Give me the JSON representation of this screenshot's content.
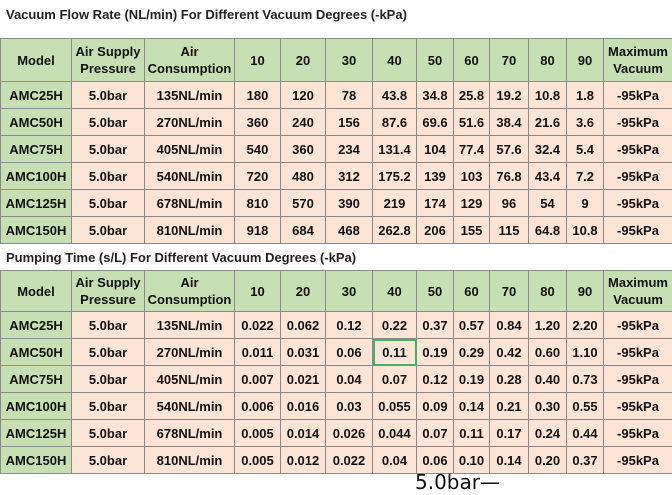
{
  "table1": {
    "title": "Vacuum Flow Rate (NL/min) For Different Vacuum Degrees (-kPa)",
    "headers": [
      "Model",
      "Air Supply Pressure",
      "Air Consumption",
      "10",
      "20",
      "30",
      "40",
      "50",
      "60",
      "70",
      "80",
      "90",
      "Maximum Vacuum"
    ],
    "rows": [
      [
        "AMC25H",
        "5.0bar",
        "135NL/min",
        "180",
        "120",
        "78",
        "43.8",
        "34.8",
        "25.8",
        "19.2",
        "10.8",
        "1.8",
        "-95kPa"
      ],
      [
        "AMC50H",
        "5.0bar",
        "270NL/min",
        "360",
        "240",
        "156",
        "87.6",
        "69.6",
        "51.6",
        "38.4",
        "21.6",
        "3.6",
        "-95kPa"
      ],
      [
        "AMC75H",
        "5.0bar",
        "405NL/min",
        "540",
        "360",
        "234",
        "131.4",
        "104",
        "77.4",
        "57.6",
        "32.4",
        "5.4",
        "-95kPa"
      ],
      [
        "AMC100H",
        "5.0bar",
        "540NL/min",
        "720",
        "480",
        "312",
        "175.2",
        "139",
        "103",
        "76.8",
        "43.4",
        "7.2",
        "-95kPa"
      ],
      [
        "AMC125H",
        "5.0bar",
        "678NL/min",
        "810",
        "570",
        "390",
        "219",
        "174",
        "129",
        "96",
        "54",
        "9",
        "-95kPa"
      ],
      [
        "AMC150H",
        "5.0bar",
        "810NL/min",
        "918",
        "684",
        "468",
        "262.8",
        "206",
        "155",
        "115",
        "64.8",
        "10.8",
        "-95kPa"
      ]
    ]
  },
  "table2": {
    "title": "Pumping Time (s/L) For Different Vacuum Degrees (-kPa)",
    "headers": [
      "Model",
      "Air Supply Pressure",
      "Air Consumption",
      "10",
      "20",
      "30",
      "40",
      "50",
      "60",
      "70",
      "80",
      "90",
      "Maximum Vacuum"
    ],
    "rows": [
      [
        "AMC25H",
        "5.0bar",
        "135NL/min",
        "0.022",
        "0.062",
        "0.12",
        "0.22",
        "0.37",
        "0.57",
        "0.84",
        "1.20",
        "2.20",
        "-95kPa"
      ],
      [
        "AMC50H",
        "5.0bar",
        "270NL/min",
        "0.011",
        "0.031",
        "0.06",
        "0.11",
        "0.19",
        "0.29",
        "0.42",
        "0.60",
        "1.10",
        "-95kPa"
      ],
      [
        "AMC75H",
        "5.0bar",
        "405NL/min",
        "0.007",
        "0.021",
        "0.04",
        "0.07",
        "0.12",
        "0.19",
        "0.28",
        "0.40",
        "0.73",
        "-95kPa"
      ],
      [
        "AMC100H",
        "5.0bar",
        "540NL/min",
        "0.006",
        "0.016",
        "0.03",
        "0.055",
        "0.09",
        "0.14",
        "0.21",
        "0.30",
        "0.55",
        "-95kPa"
      ],
      [
        "AMC125H",
        "5.0bar",
        "678NL/min",
        "0.005",
        "0.014",
        "0.026",
        "0.044",
        "0.07",
        "0.11",
        "0.17",
        "0.24",
        "0.44",
        "-95kPa"
      ],
      [
        "AMC150H",
        "5.0bar",
        "810NL/min",
        "0.005",
        "0.012",
        "0.022",
        "0.04",
        "0.06",
        "0.10",
        "0.14",
        "0.20",
        "0.37",
        "-95kPa"
      ]
    ],
    "selected_cell": {
      "row": 1,
      "col": 6
    }
  },
  "footer_text": "5.0bar—"
}
